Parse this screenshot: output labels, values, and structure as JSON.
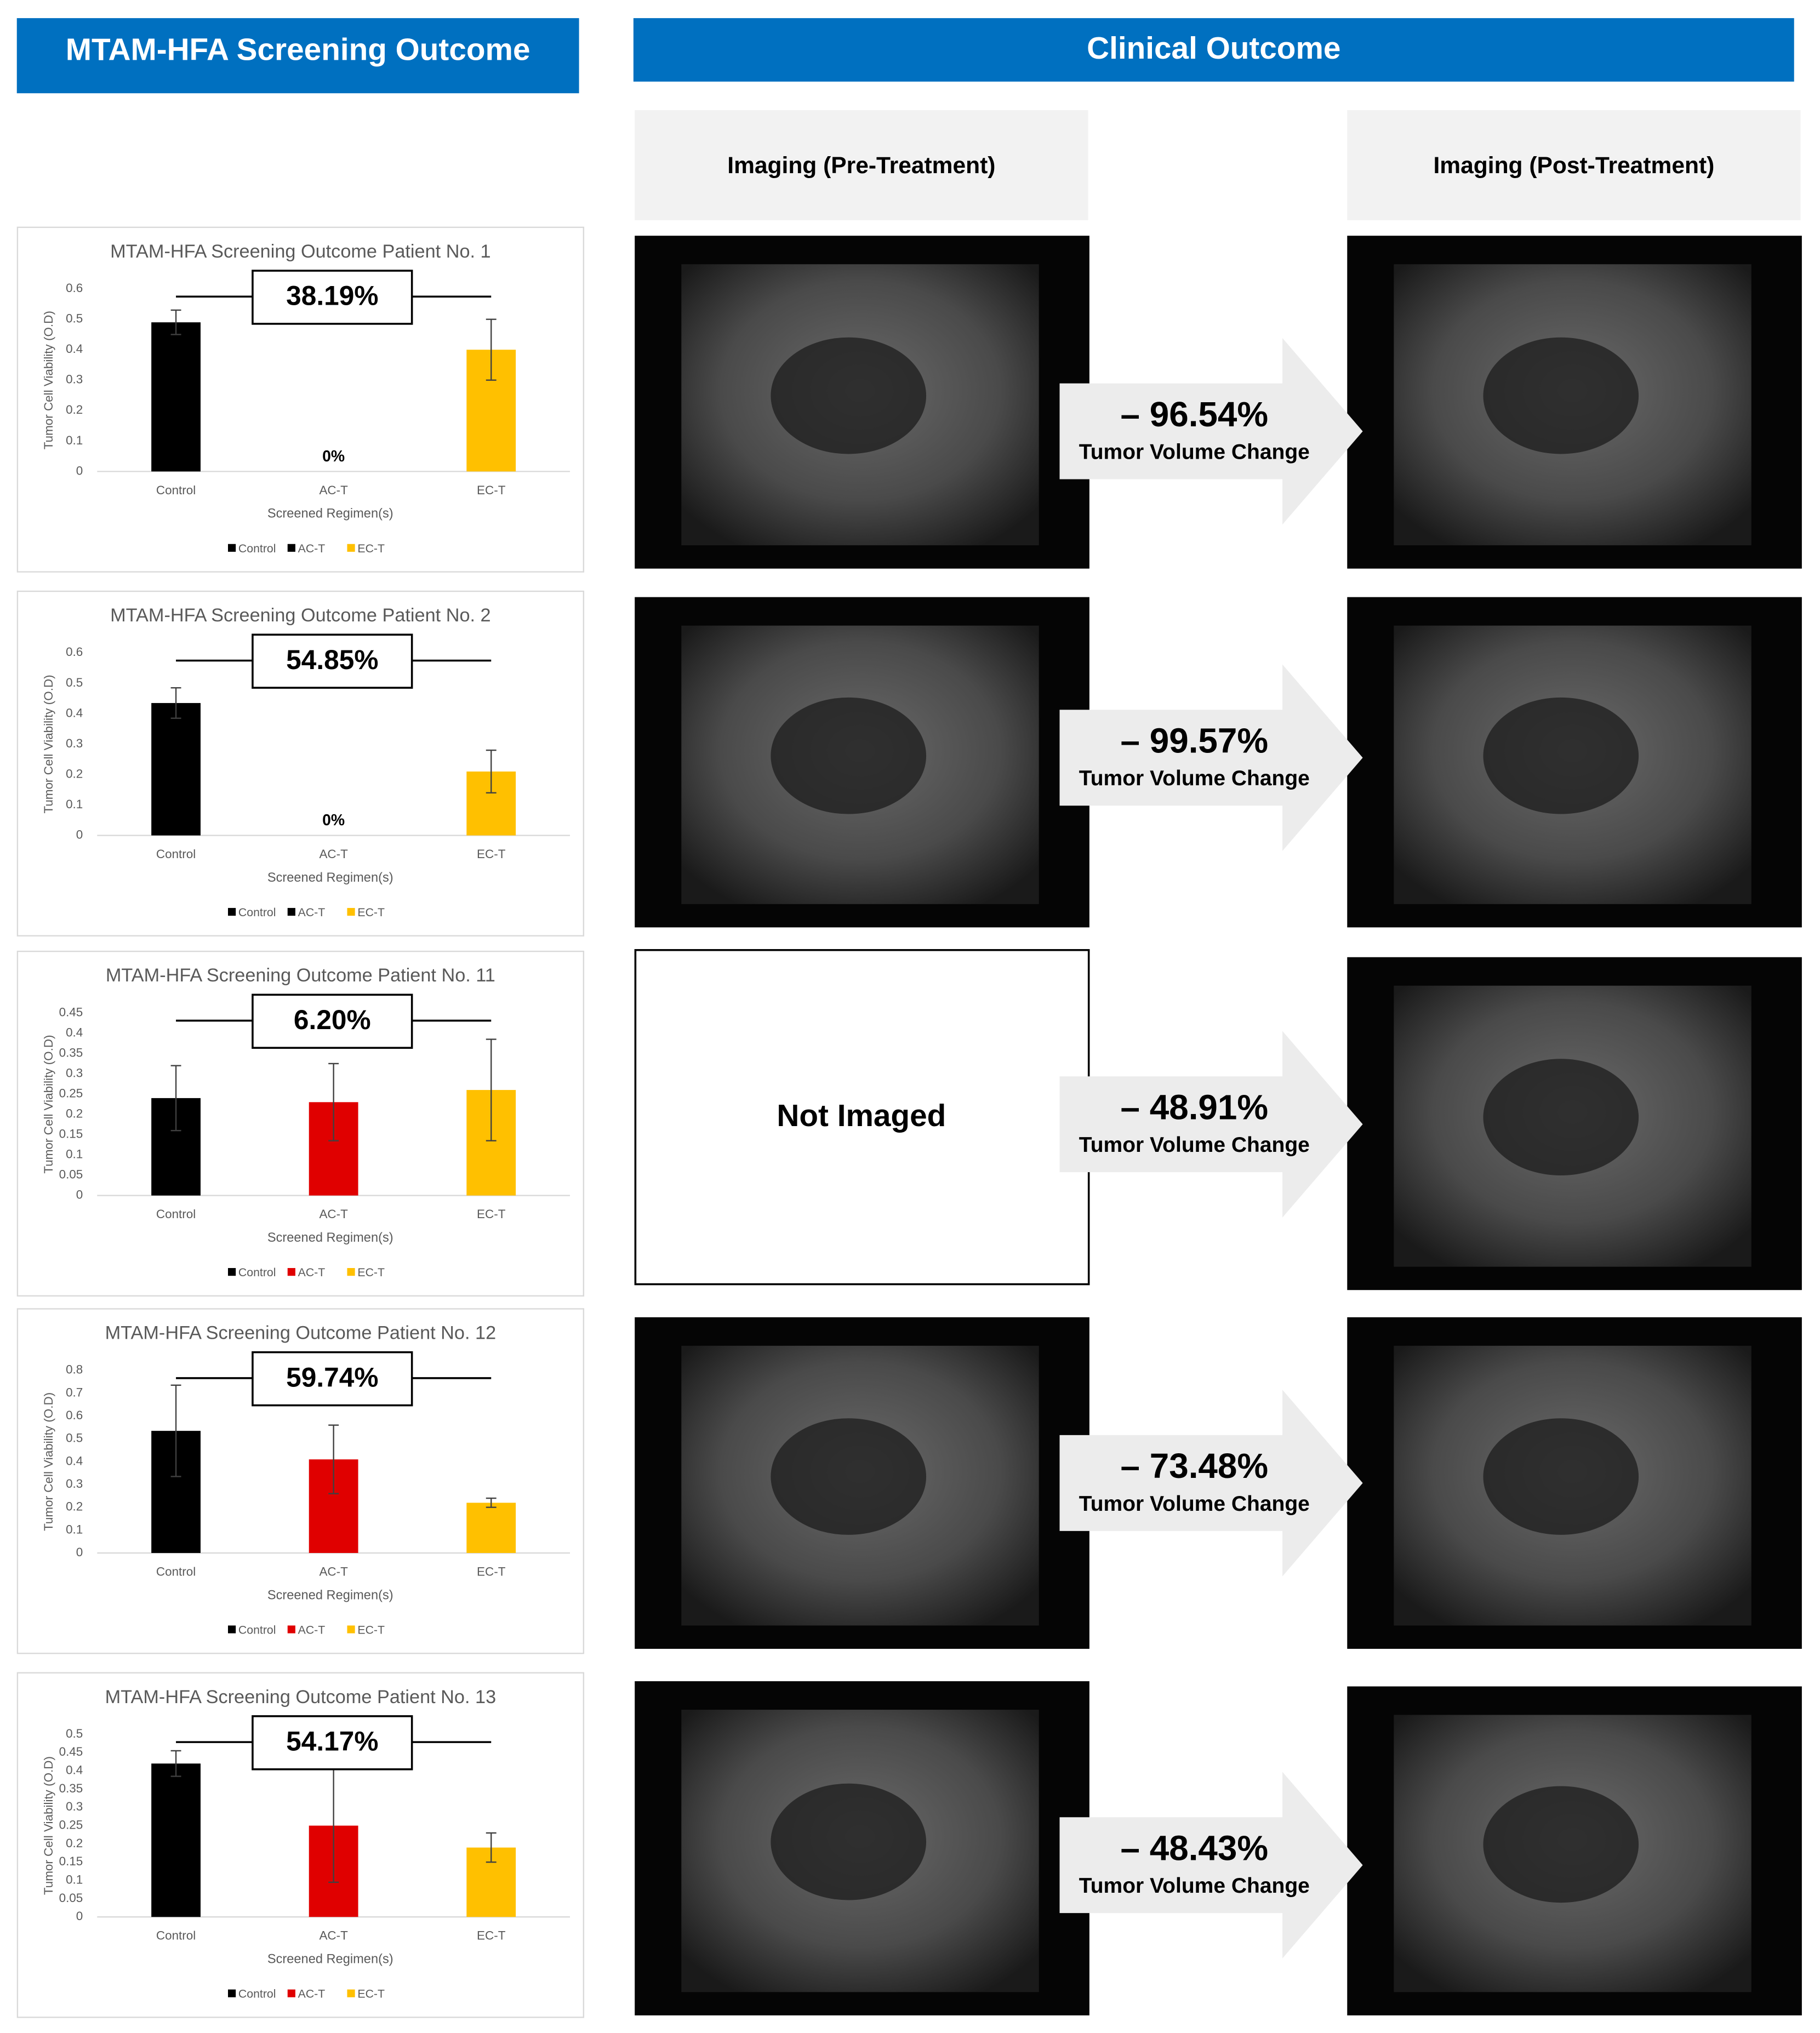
{
  "headers": {
    "screening": "MTAM-HFA Screening Outcome",
    "clinical": "Clinical Outcome"
  },
  "imaging": {
    "pre": "Imaging (Pre-Treatment)",
    "post": "Imaging (Post-Treatment)",
    "not_imaged": "Not Imaged"
  },
  "chart_data": [
    {
      "type": "bar",
      "title": "MTAM-HFA Screening Outcome Patient No. 1",
      "y_label": "Tumor Cell Viability (O.D)",
      "x_label": "Screened Regimen(s)",
      "categories": [
        "Control",
        "AC-T",
        "EC-T"
      ],
      "values": [
        0.49,
        0,
        0.4
      ],
      "value_labels": [
        null,
        "0%",
        null
      ],
      "errors": [
        0.04,
        null,
        0.1
      ],
      "colors": [
        "#000000",
        "#000000",
        "#ffc000"
      ],
      "ylim": [
        0,
        0.6
      ],
      "yticks": [
        0,
        0.1,
        0.2,
        0.3,
        0.4,
        0.5,
        0.6
      ],
      "annotation": "38.19%",
      "legend": "bottom"
    },
    {
      "type": "bar",
      "title": "MTAM-HFA Screening Outcome Patient No. 2",
      "y_label": "Tumor Cell Viability (O.D)",
      "x_label": "Screened Regimen(s)",
      "categories": [
        "Control",
        "AC-T",
        "EC-T"
      ],
      "values": [
        0.435,
        0,
        0.21
      ],
      "value_labels": [
        null,
        "0%",
        null
      ],
      "errors": [
        0.05,
        null,
        0.07
      ],
      "colors": [
        "#000000",
        "#000000",
        "#ffc000"
      ],
      "ylim": [
        0,
        0.6
      ],
      "yticks": [
        0,
        0.1,
        0.2,
        0.3,
        0.4,
        0.5,
        0.6
      ],
      "annotation": "54.85%",
      "legend": "bottom"
    },
    {
      "type": "bar",
      "title": "MTAM-HFA Screening Outcome Patient No. 11",
      "y_label": "Tumor Cell Viability (O.D)",
      "x_label": "Screened Regimen(s)",
      "categories": [
        "Control",
        "AC-T",
        "EC-T"
      ],
      "values": [
        0.24,
        0.23,
        0.26
      ],
      "errors": [
        0.08,
        0.095,
        0.125
      ],
      "colors": [
        "#000000",
        "#e00000",
        "#ffc000"
      ],
      "ylim": [
        0,
        0.45
      ],
      "yticks": [
        0,
        0.05,
        0.1,
        0.15,
        0.2,
        0.25,
        0.3,
        0.35,
        0.4,
        0.45
      ],
      "annotation": "6.20%",
      "legend": "bottom"
    },
    {
      "type": "bar",
      "title": "MTAM-HFA Screening Outcome Patient No. 12",
      "y_label": "Tumor Cell Viability (O.D)",
      "x_label": "Screened Regimen(s)",
      "categories": [
        "Control",
        "AC-T",
        "EC-T"
      ],
      "values": [
        0.535,
        0.41,
        0.22
      ],
      "errors": [
        0.2,
        0.15,
        0.02
      ],
      "colors": [
        "#000000",
        "#e00000",
        "#ffc000"
      ],
      "ylim": [
        0,
        0.8
      ],
      "yticks": [
        0,
        0.1,
        0.2,
        0.3,
        0.4,
        0.5,
        0.6,
        0.7,
        0.8
      ],
      "annotation": "59.74%",
      "legend": "bottom"
    },
    {
      "type": "bar",
      "title": "MTAM-HFA Screening Outcome Patient No. 13",
      "y_label": "Tumor Cell Viability (O.D)",
      "x_label": "Screened Regimen(s)",
      "categories": [
        "Control",
        "AC-T",
        "EC-T"
      ],
      "values": [
        0.42,
        0.25,
        0.19
      ],
      "errors": [
        0.035,
        0.155,
        0.04
      ],
      "colors": [
        "#000000",
        "#e00000",
        "#ffc000"
      ],
      "ylim": [
        0,
        0.5
      ],
      "yticks": [
        0,
        0.05,
        0.1,
        0.15,
        0.2,
        0.25,
        0.3,
        0.35,
        0.4,
        0.45,
        0.5
      ],
      "annotation": "54.17%",
      "legend": "bottom"
    }
  ],
  "outcomes": [
    {
      "change": "– 96.54%",
      "label": "Tumor Volume Change"
    },
    {
      "change": "–  99.57%",
      "label": "Tumor Volume Change"
    },
    {
      "change": "–  48.91%",
      "label": "Tumor Volume Change"
    },
    {
      "change": "– 73.48%",
      "label": "Tumor Volume Change"
    },
    {
      "change": "–  48.43%",
      "label": "Tumor Volume Change"
    }
  ]
}
